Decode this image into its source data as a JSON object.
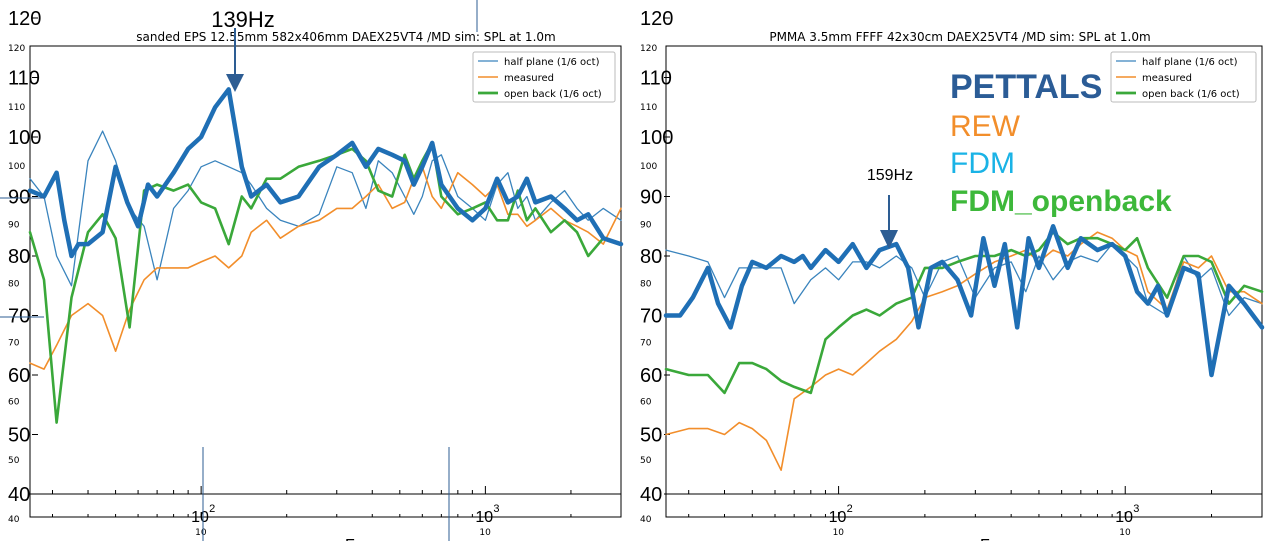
{
  "left_chart": {
    "title": "sanded EPS 12.55mm 582x406mm DAEX25VT4 /MD sim: SPL at 1.0m",
    "annotation": "139Hz",
    "big_ticks": [
      "120",
      "110",
      "100",
      "90",
      "80",
      "70",
      "60",
      "50",
      "40"
    ],
    "small_ticks": [
      "120",
      "110",
      "100",
      "90",
      "80",
      "70",
      "60",
      "50",
      "40"
    ],
    "x_ticks": [
      "10",
      "10"
    ],
    "x_tick_exps": [
      "2",
      "3"
    ],
    "x_label_fragment": "F"
  },
  "right_chart": {
    "title": "PMMA 3.5mm FFFF 42x30cm DAEX25VT4 /MD sim: SPL at 1.0m",
    "annotation": "159Hz",
    "big_ticks": [
      "120",
      "110",
      "100",
      "90",
      "80",
      "70",
      "60",
      "50",
      "40"
    ],
    "small_ticks": [
      "120",
      "110",
      "100",
      "90",
      "80",
      "70",
      "60",
      "50",
      "40"
    ],
    "x_ticks": [
      "10",
      "10"
    ],
    "x_tick_exps": [
      "2",
      "3"
    ],
    "x_label_fragment": "F"
  },
  "legend": [
    "half plane (1/6 oct)",
    "measured",
    "open back (1/6 oct)"
  ],
  "overlay_legend": [
    {
      "label": "PETTALS",
      "color": "#2b5c96"
    },
    {
      "label": "REW",
      "color": "#f28e2b"
    },
    {
      "label": "FDM",
      "color": "#1ab3e6"
    },
    {
      "label": "FDM_openback",
      "color": "#3db83a"
    }
  ],
  "colors": {
    "half_plane": "#3a84bd",
    "measured": "#f28e2b",
    "open_back": "#3aa83a",
    "pettals": "#1f6fb5",
    "arrow": "#2d5d93"
  },
  "chart_data": [
    {
      "type": "line",
      "title": "sanded EPS 12.55mm 582x406mm DAEX25VT4 /MD sim: SPL at 1.0m",
      "x_scale": "log",
      "xlim": [
        25,
        3000
      ],
      "ylim": [
        40,
        120
      ],
      "x_ticks": [
        100,
        1000
      ],
      "legend_position": "top-right",
      "series": [
        {
          "name": "half plane (1/6 oct)",
          "x": [
            25,
            28,
            31,
            35,
            40,
            45,
            50,
            56,
            63,
            70,
            80,
            90,
            100,
            112,
            125,
            139,
            150,
            170,
            190,
            220,
            260,
            300,
            340,
            380,
            420,
            470,
            520,
            560,
            600,
            650,
            700,
            800,
            900,
            1000,
            1100,
            1200,
            1300,
            1400,
            1500,
            1700,
            1900,
            2100,
            2300,
            2600,
            3000
          ],
          "values": [
            93,
            90,
            80,
            75,
            96,
            101,
            96,
            88,
            85,
            76,
            88,
            91,
            95,
            96,
            95,
            94,
            92,
            88,
            86,
            85,
            87,
            95,
            94,
            88,
            96,
            94,
            90,
            87,
            90,
            96,
            97,
            90,
            88,
            86,
            92,
            94,
            88,
            90,
            86,
            89,
            91,
            88,
            86,
            88,
            86
          ]
        },
        {
          "name": "measured",
          "x": [
            25,
            28,
            31,
            35,
            40,
            45,
            50,
            56,
            63,
            70,
            80,
            90,
            100,
            112,
            125,
            139,
            150,
            170,
            190,
            220,
            260,
            300,
            340,
            380,
            420,
            470,
            520,
            560,
            600,
            650,
            700,
            800,
            900,
            1000,
            1100,
            1200,
            1300,
            1400,
            1500,
            1700,
            1900,
            2100,
            2300,
            2600,
            3000
          ],
          "values": [
            62,
            61,
            65,
            70,
            72,
            70,
            64,
            71,
            76,
            78,
            78,
            78,
            79,
            80,
            78,
            80,
            84,
            86,
            83,
            85,
            86,
            88,
            88,
            90,
            92,
            88,
            89,
            93,
            95,
            90,
            88,
            94,
            92,
            90,
            92,
            87,
            87,
            85,
            86,
            88,
            86,
            85,
            84,
            82,
            88
          ]
        },
        {
          "name": "open back (1/6 oct)",
          "x": [
            25,
            28,
            31,
            35,
            40,
            45,
            50,
            56,
            63,
            70,
            80,
            90,
            100,
            112,
            125,
            139,
            150,
            170,
            190,
            220,
            260,
            300,
            340,
            380,
            420,
            470,
            520,
            560,
            600,
            650,
            700,
            800,
            900,
            1000,
            1100,
            1200,
            1300,
            1400,
            1500,
            1700,
            1900,
            2100,
            2300,
            2600,
            3000
          ],
          "values": [
            84,
            76,
            52,
            73,
            84,
            87,
            83,
            68,
            91,
            92,
            91,
            92,
            89,
            88,
            82,
            90,
            88,
            93,
            93,
            95,
            96,
            97,
            98,
            96,
            91,
            90,
            97,
            93,
            96,
            99,
            90,
            87,
            88,
            89,
            86,
            86,
            91,
            86,
            88,
            84,
            86,
            84,
            80,
            83,
            82
          ]
        },
        {
          "name": "PETTALS",
          "x": [
            25,
            28,
            31,
            33,
            35,
            37,
            40,
            45,
            50,
            55,
            60,
            65,
            70,
            80,
            90,
            100,
            112,
            125,
            139,
            150,
            170,
            190,
            220,
            260,
            300,
            340,
            380,
            420,
            470,
            520,
            560,
            600,
            650,
            700,
            800,
            900,
            1000,
            1100,
            1200,
            1300,
            1400,
            1500,
            1700,
            1900,
            2100,
            2300,
            2600,
            3000
          ],
          "values": [
            91,
            90,
            94,
            86,
            80,
            82,
            82,
            84,
            95,
            89,
            85,
            92,
            90,
            94,
            98,
            100,
            105,
            108,
            95,
            90,
            92,
            89,
            90,
            95,
            97,
            99,
            95,
            98,
            97,
            96,
            92,
            95,
            99,
            92,
            88,
            86,
            88,
            93,
            89,
            90,
            93,
            89,
            90,
            88,
            86,
            87,
            83,
            82
          ]
        }
      ]
    },
    {
      "type": "line",
      "title": "PMMA 3.5mm FFFF 42x30cm DAEX25VT4 /MD sim: SPL at 1.0m",
      "x_scale": "log",
      "xlim": [
        25,
        3000
      ],
      "ylim": [
        40,
        120
      ],
      "x_ticks": [
        100,
        1000
      ],
      "legend_position": "top-right",
      "series": [
        {
          "name": "half plane (1/6 oct)",
          "x": [
            25,
            30,
            35,
            40,
            45,
            50,
            56,
            63,
            70,
            80,
            90,
            100,
            112,
            125,
            139,
            159,
            180,
            200,
            230,
            260,
            300,
            350,
            400,
            450,
            500,
            560,
            630,
            700,
            800,
            900,
            1000,
            1100,
            1200,
            1400,
            1600,
            1800,
            2000,
            2300,
            2600,
            3000
          ],
          "values": [
            81,
            80,
            79,
            73,
            78,
            78,
            78,
            78,
            72,
            76,
            78,
            76,
            79,
            79,
            78,
            80,
            78,
            73,
            79,
            80,
            73,
            78,
            79,
            74,
            80,
            76,
            79,
            80,
            79,
            82,
            80,
            78,
            72,
            70,
            80,
            76,
            78,
            70,
            73,
            72
          ]
        },
        {
          "name": "measured",
          "x": [
            25,
            30,
            35,
            40,
            45,
            50,
            56,
            63,
            70,
            80,
            90,
            100,
            112,
            125,
            139,
            159,
            180,
            200,
            230,
            260,
            300,
            350,
            400,
            450,
            500,
            560,
            630,
            700,
            800,
            900,
            1000,
            1100,
            1200,
            1400,
            1600,
            1800,
            2000,
            2300,
            2600,
            3000
          ],
          "values": [
            50,
            51,
            51,
            50,
            52,
            51,
            49,
            44,
            56,
            58,
            60,
            61,
            60,
            62,
            64,
            66,
            69,
            73,
            74,
            75,
            77,
            79,
            80,
            81,
            79,
            81,
            80,
            82,
            84,
            83,
            81,
            80,
            74,
            71,
            79,
            78,
            80,
            74,
            74,
            72
          ]
        },
        {
          "name": "open back (1/6 oct)",
          "x": [
            25,
            30,
            35,
            40,
            45,
            50,
            56,
            63,
            70,
            80,
            90,
            100,
            112,
            125,
            139,
            159,
            180,
            200,
            230,
            260,
            300,
            350,
            400,
            450,
            500,
            560,
            630,
            700,
            800,
            900,
            1000,
            1100,
            1200,
            1400,
            1600,
            1800,
            2000,
            2300,
            2600,
            3000
          ],
          "values": [
            61,
            60,
            60,
            57,
            62,
            62,
            61,
            59,
            58,
            57,
            66,
            68,
            70,
            71,
            70,
            72,
            73,
            78,
            78,
            79,
            80,
            80,
            81,
            80,
            81,
            84,
            82,
            83,
            83,
            82,
            81,
            83,
            78,
            73,
            80,
            80,
            79,
            72,
            75,
            74
          ]
        },
        {
          "name": "PETTALS",
          "x": [
            25,
            28,
            31,
            35,
            38,
            42,
            46,
            50,
            56,
            63,
            70,
            75,
            80,
            90,
            100,
            112,
            125,
            139,
            159,
            175,
            190,
            210,
            230,
            260,
            290,
            320,
            350,
            380,
            420,
            460,
            500,
            560,
            630,
            700,
            800,
            900,
            1000,
            1100,
            1200,
            1300,
            1400,
            1600,
            1800,
            2000,
            2300,
            2600,
            3000
          ],
          "values": [
            70,
            70,
            73,
            78,
            72,
            68,
            75,
            79,
            78,
            80,
            79,
            80,
            78,
            81,
            79,
            82,
            78,
            81,
            82,
            78,
            68,
            78,
            79,
            76,
            70,
            83,
            75,
            82,
            68,
            83,
            78,
            85,
            78,
            83,
            81,
            82,
            80,
            74,
            72,
            75,
            70,
            78,
            77,
            60,
            75,
            72,
            68
          ]
        }
      ]
    }
  ]
}
